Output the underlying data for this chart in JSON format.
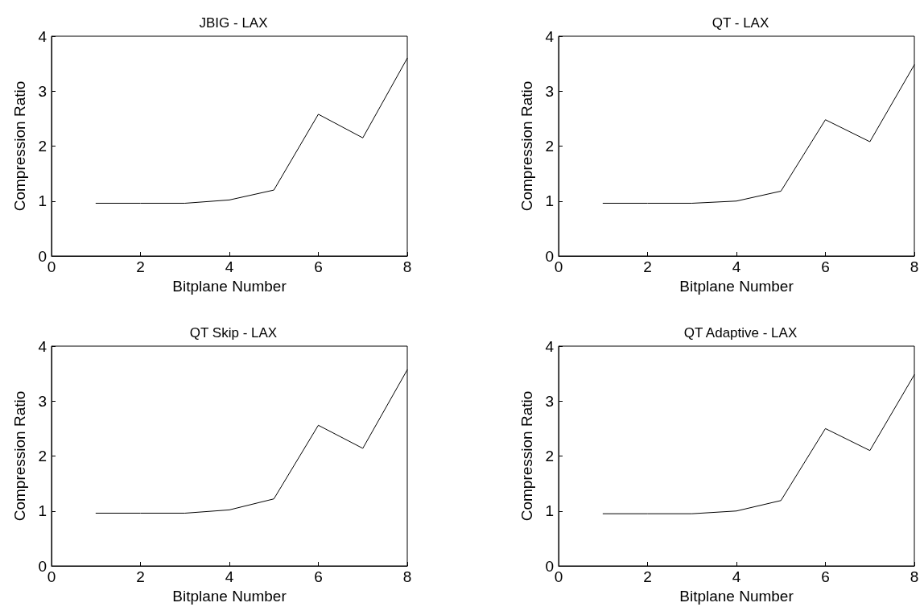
{
  "chart_data": [
    {
      "type": "line",
      "title": "JBIG - LAX",
      "xlabel": "Bitplane Number",
      "ylabel": "Compression Ratio",
      "x": [
        1,
        2,
        3,
        4,
        5,
        6,
        7,
        8
      ],
      "series": [
        {
          "color": "#000000",
          "values": [
            0.96,
            0.96,
            0.96,
            1.02,
            1.2,
            2.58,
            2.15,
            3.6
          ]
        }
      ],
      "xlim": [
        0,
        8
      ],
      "xticks": [
        0,
        2,
        4,
        6,
        8
      ],
      "ylim": [
        0,
        4
      ],
      "yticks": [
        0,
        1,
        2,
        3,
        4
      ],
      "grid": false,
      "marker": "none",
      "line_style": "solid"
    },
    {
      "type": "line",
      "title": "QT - LAX",
      "xlabel": "Bitplane Number",
      "ylabel": "Compression Ratio",
      "x": [
        1,
        2,
        3,
        4,
        5,
        6,
        7,
        8
      ],
      "series": [
        {
          "color": "#000000",
          "values": [
            0.96,
            0.96,
            0.96,
            1.0,
            1.18,
            2.48,
            2.08,
            3.48
          ]
        }
      ],
      "xlim": [
        0,
        8
      ],
      "xticks": [
        0,
        2,
        4,
        6,
        8
      ],
      "ylim": [
        0,
        4
      ],
      "yticks": [
        0,
        1,
        2,
        3,
        4
      ],
      "grid": false,
      "marker": "none",
      "line_style": "solid"
    },
    {
      "type": "line",
      "title": "QT Skip - LAX",
      "xlabel": "Bitplane Number",
      "ylabel": "Compression Ratio",
      "x": [
        1,
        2,
        3,
        4,
        5,
        6,
        7,
        8
      ],
      "series": [
        {
          "color": "#000000",
          "values": [
            0.96,
            0.96,
            0.96,
            1.02,
            1.22,
            2.56,
            2.14,
            3.57
          ]
        }
      ],
      "xlim": [
        0,
        8
      ],
      "xticks": [
        0,
        2,
        4,
        6,
        8
      ],
      "ylim": [
        0,
        4
      ],
      "yticks": [
        0,
        1,
        2,
        3,
        4
      ],
      "grid": false,
      "marker": "none",
      "line_style": "solid"
    },
    {
      "type": "line",
      "title": "QT Adaptive - LAX",
      "xlabel": "Bitplane Number",
      "ylabel": "Compression Ratio",
      "x": [
        1,
        2,
        3,
        4,
        5,
        6,
        7,
        8
      ],
      "series": [
        {
          "color": "#000000",
          "values": [
            0.95,
            0.95,
            0.95,
            1.0,
            1.19,
            2.5,
            2.1,
            3.48
          ]
        }
      ],
      "xlim": [
        0,
        8
      ],
      "xticks": [
        0,
        2,
        4,
        6,
        8
      ],
      "ylim": [
        0,
        4
      ],
      "yticks": [
        0,
        1,
        2,
        3,
        4
      ],
      "grid": false,
      "marker": "none",
      "line_style": "solid"
    }
  ]
}
